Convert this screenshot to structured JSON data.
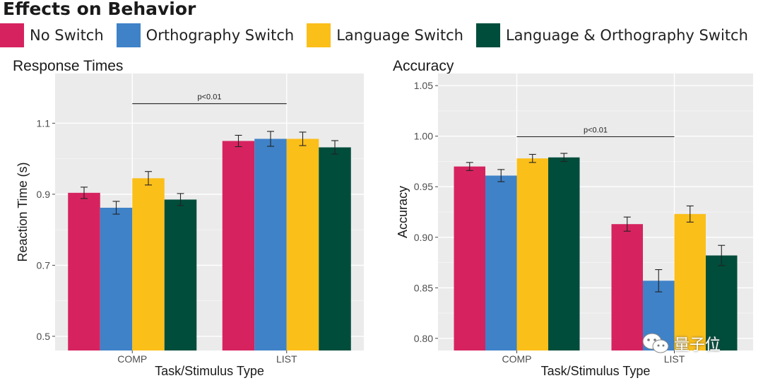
{
  "figure_title": "Effects on Behavior",
  "legend": [
    {
      "label": "No Switch",
      "color": "#d6235f"
    },
    {
      "label": "Orthography Switch",
      "color": "#3f82c8"
    },
    {
      "label": "Language Switch",
      "color": "#fbbf1a"
    },
    {
      "label": "Language & Orthography Switch",
      "color": "#004d3c"
    }
  ],
  "watermark": "量子位",
  "chart_data": [
    {
      "type": "bar",
      "title": "Response Times",
      "xlabel": "Task/Stimulus Type",
      "ylabel": "Reaction Time (s)",
      "ylim": [
        0.46,
        1.24
      ],
      "yticks": [
        0.5,
        0.7,
        0.9,
        1.1
      ],
      "ytick_labels": [
        "0.5",
        "0.7",
        "0.9",
        "1.1"
      ],
      "categories": [
        "COMP",
        "LIST"
      ],
      "series": [
        {
          "name": "No Switch",
          "values": [
            0.904,
            1.05
          ],
          "errors": [
            0.016,
            0.016
          ]
        },
        {
          "name": "Orthography Switch",
          "values": [
            0.862,
            1.056
          ],
          "errors": [
            0.018,
            0.021
          ]
        },
        {
          "name": "Language Switch",
          "values": [
            0.945,
            1.056
          ],
          "errors": [
            0.019,
            0.019
          ]
        },
        {
          "name": "Language & Orthography Switch",
          "values": [
            0.885,
            1.032
          ],
          "errors": [
            0.017,
            0.019
          ]
        }
      ],
      "annotation": {
        "text": "p<0.01",
        "y": 1.155
      },
      "grid": true,
      "legend": "top"
    },
    {
      "type": "bar",
      "title": "Accuracy",
      "xlabel": "Task/Stimulus Type",
      "ylabel": "Accuracy",
      "ylim": [
        0.788,
        1.062
      ],
      "yticks": [
        0.8,
        0.85,
        0.9,
        0.95,
        1.0,
        1.05
      ],
      "ytick_labels": [
        "0.80",
        "0.85",
        "0.90",
        "0.95",
        "1.00",
        "1.05"
      ],
      "categories": [
        "COMP",
        "LIST"
      ],
      "series": [
        {
          "name": "No Switch",
          "values": [
            0.97,
            0.913
          ],
          "errors": [
            0.004,
            0.007
          ]
        },
        {
          "name": "Orthography Switch",
          "values": [
            0.961,
            0.857
          ],
          "errors": [
            0.006,
            0.011
          ]
        },
        {
          "name": "Language Switch",
          "values": [
            0.978,
            0.923
          ],
          "errors": [
            0.004,
            0.008
          ]
        },
        {
          "name": "Language & Orthography Switch",
          "values": [
            0.979,
            0.882
          ],
          "errors": [
            0.004,
            0.01
          ]
        }
      ],
      "annotation": {
        "text": "p<0.01",
        "y": 0.9995
      },
      "grid": true,
      "legend": "top"
    }
  ]
}
